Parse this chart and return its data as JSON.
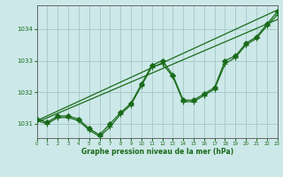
{
  "title": "Graphe pression niveau de la mer (hPa)",
  "bg_color": "#cce8e8",
  "grid_color": "#aacccc",
  "line_color": "#1a6b1a",
  "x_min": 0,
  "x_max": 23,
  "y_min": 1030.55,
  "y_max": 1034.75,
  "yticks": [
    1031,
    1032,
    1033,
    1034
  ],
  "xticks": [
    0,
    1,
    2,
    3,
    4,
    5,
    6,
    7,
    8,
    9,
    10,
    11,
    12,
    13,
    14,
    15,
    16,
    17,
    18,
    19,
    20,
    21,
    22,
    23
  ],
  "series1_x": [
    0,
    1,
    2,
    3,
    4,
    5,
    6,
    7,
    8,
    9,
    10,
    11,
    12,
    13,
    14,
    15,
    16,
    17,
    18,
    19,
    20,
    21,
    22,
    23
  ],
  "series1_y": [
    1031.15,
    1031.05,
    1031.25,
    1031.25,
    1031.15,
    1030.85,
    1030.65,
    1031.0,
    1031.35,
    1031.65,
    1032.25,
    1032.85,
    1033.0,
    1032.55,
    1031.75,
    1031.75,
    1031.95,
    1032.15,
    1033.0,
    1033.15,
    1033.55,
    1033.75,
    1034.15,
    1034.55
  ],
  "series2_x": [
    0,
    1,
    2,
    3,
    4,
    5,
    6,
    7,
    8,
    9,
    10,
    11,
    12,
    13,
    14,
    15,
    16,
    17,
    18,
    19,
    20,
    21,
    22,
    23
  ],
  "series2_y": [
    1031.1,
    1031.0,
    1031.2,
    1031.2,
    1031.1,
    1030.8,
    1030.6,
    1030.9,
    1031.3,
    1031.6,
    1032.2,
    1032.8,
    1032.9,
    1032.5,
    1031.7,
    1031.7,
    1031.9,
    1032.1,
    1032.9,
    1033.1,
    1033.5,
    1033.7,
    1034.1,
    1034.45
  ],
  "trend1_x": [
    0,
    23
  ],
  "trend1_y": [
    1031.1,
    1034.6
  ],
  "trend2_x": [
    0,
    23
  ],
  "trend2_y": [
    1031.05,
    1034.3
  ]
}
